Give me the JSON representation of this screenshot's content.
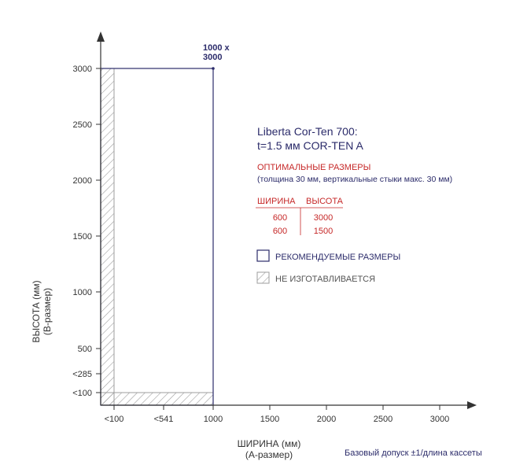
{
  "chart_data": {
    "type": "area",
    "xlabel": "ШИРИНА (мм)",
    "xlabel2": "(А-размер)",
    "ylabel": "ВЫСОТА (мм)",
    "ylabel2": "(В-размер)",
    "x_ticks": [
      {
        "label": "<100",
        "value": 100
      },
      {
        "label": "<541",
        "value": 541
      },
      {
        "label": "1000",
        "value": 1000
      },
      {
        "label": "1500",
        "value": 1500
      },
      {
        "label": "2000",
        "value": 2000
      },
      {
        "label": "2500",
        "value": 2500
      },
      {
        "label": "3000",
        "value": 3000
      }
    ],
    "y_ticks": [
      {
        "label": "<100",
        "value": 100
      },
      {
        "label": "<285",
        "value": 285
      },
      {
        "label": "500",
        "value": 500
      },
      {
        "label": "1000",
        "value": 1000
      },
      {
        "label": "1500",
        "value": 1500
      },
      {
        "label": "2000",
        "value": 2000
      },
      {
        "label": "2500",
        "value": 2500
      },
      {
        "label": "3000",
        "value": 3000
      }
    ],
    "recommended_region": {
      "x": [
        0,
        1000
      ],
      "y": [
        0,
        3000
      ]
    },
    "not_manufactured_regions": [
      {
        "x": [
          0,
          100
        ],
        "y": [
          0,
          3000
        ]
      },
      {
        "x": [
          0,
          1000
        ],
        "y": [
          0,
          100
        ]
      }
    ],
    "corner_point": {
      "x": 1000,
      "y": 3000,
      "label_line1": "1000 x",
      "label_line2": "3000"
    },
    "legend": [
      {
        "label": "РЕКОМЕНДУЕМЫЕ РАЗМЕРЫ",
        "style": "outline",
        "color": "#2b2b6a"
      },
      {
        "label": "НЕ ИЗГОТАВЛИВАЕТСЯ",
        "style": "hatch",
        "color": "#9e9e9e"
      }
    ]
  },
  "info": {
    "title_line1": "Liberta Cor-Ten 700:",
    "title_line2": "t=1.5 мм COR-TEN A",
    "optimal_label": "ОПТИМАЛЬНЫЕ РАЗМЕРЫ",
    "optimal_note": "(толщина 30 мм, вертикальные стыки макс. 30 мм)",
    "table": {
      "headers": [
        "ШИРИНА",
        "ВЫСОТА"
      ],
      "rows": [
        [
          "600",
          "3000"
        ],
        [
          "600",
          "1500"
        ]
      ]
    }
  },
  "tolerance_note": "Базовый допуск ±1/длина кассеты",
  "colors": {
    "navy": "#2b2b6a",
    "red": "#c62828",
    "hatch": "#9e9e9e",
    "axis": "#333333"
  }
}
